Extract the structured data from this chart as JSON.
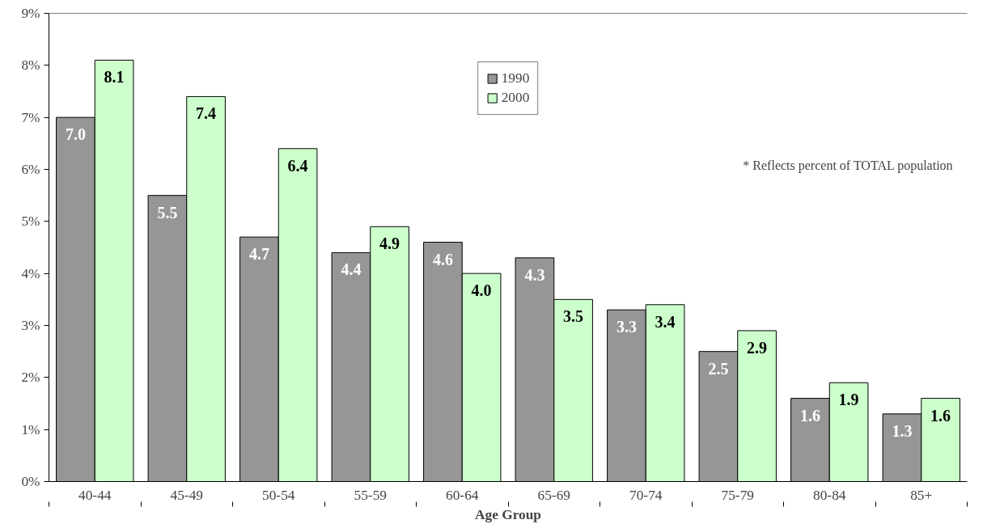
{
  "chart_data": {
    "type": "bar",
    "xlabel": "Age Group",
    "categories": [
      "40-44",
      "45-49",
      "50-54",
      "55-59",
      "60-64",
      "65-69",
      "70-74",
      "75-79",
      "80-84",
      "85+"
    ],
    "series": [
      {
        "name": "1990",
        "color": "#969696",
        "values": [
          7.0,
          5.5,
          4.7,
          4.4,
          4.6,
          4.3,
          3.3,
          2.5,
          1.6,
          1.3
        ],
        "value_labels": [
          "7.0",
          "5.5",
          "4.7",
          "4.4",
          "4.6",
          "4.3",
          "3.3",
          "2.5",
          "1.6",
          "1.3"
        ]
      },
      {
        "name": "2000",
        "color": "#ccffcc",
        "values": [
          8.1,
          7.4,
          6.4,
          4.9,
          4.0,
          3.5,
          3.4,
          2.9,
          1.9,
          1.6
        ],
        "value_labels": [
          "8.1",
          "7.4",
          "6.4",
          "4.9",
          "4.0",
          "3.5",
          "3.4",
          "2.9",
          "1.9",
          "1.6"
        ]
      }
    ],
    "ylim": [
      0,
      9
    ],
    "yticks": [
      {
        "value": 0,
        "label": "0%"
      },
      {
        "value": 1,
        "label": "1%"
      },
      {
        "value": 2,
        "label": "2%"
      },
      {
        "value": 3,
        "label": "3%"
      },
      {
        "value": 4,
        "label": "4%"
      },
      {
        "value": 5,
        "label": "5%"
      },
      {
        "value": 6,
        "label": "6%"
      },
      {
        "value": 7,
        "label": "7%"
      },
      {
        "value": 8,
        "label": "8%"
      },
      {
        "value": 9,
        "label": "9%"
      }
    ],
    "annotations": [
      "* Reflects percent of TOTAL population"
    ],
    "legend": "top",
    "grid": false
  }
}
